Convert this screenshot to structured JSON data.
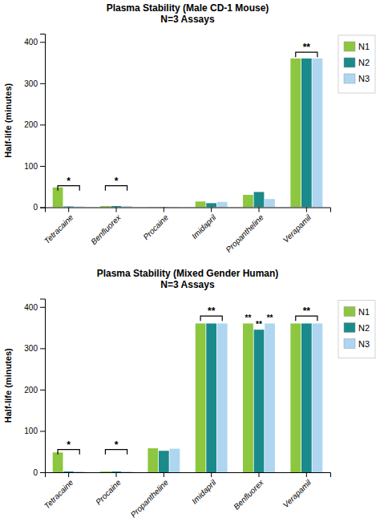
{
  "chart_data": [
    {
      "type": "bar",
      "title": "Plasma Stability (Male CD-1 Mouse)\nN=3 Assays",
      "categories": [
        "Tetracaine",
        "Benfluorex",
        "Procaine",
        "Imidapril",
        "Propantheline",
        "Verapamil"
      ],
      "series": [
        {
          "name": "N1",
          "color": "#8DC63F",
          "values": [
            48,
            3,
            1,
            14,
            30,
            360
          ]
        },
        {
          "name": "N2",
          "color": "#1B8A8A",
          "values": [
            2,
            3,
            1,
            10,
            37,
            360
          ]
        },
        {
          "name": "N3",
          "color": "#AED6F1",
          "values": [
            2,
            3,
            1,
            13,
            20,
            360
          ]
        }
      ],
      "ylabel": "Half-life (minutes)",
      "ylim": [
        0,
        420
      ],
      "yticks": [
        0,
        100,
        200,
        300,
        400
      ],
      "grid": false,
      "legend": "right",
      "annotations": [
        {
          "text": "*",
          "category": "Tetracaine",
          "y": 52
        },
        {
          "text": "*",
          "category": "Benfluorex",
          "y": 52
        },
        {
          "text": "**",
          "category": "Verapamil",
          "y": 375
        }
      ]
    },
    {
      "type": "bar",
      "title": "Plasma Stability (Mixed Gender Human)\nN=3 Assays",
      "categories": [
        "Tetracaine",
        "Procaine",
        "Propantheline",
        "Imidapril",
        "Benfluorex",
        "Verapamil"
      ],
      "series": [
        {
          "name": "N1",
          "color": "#8DC63F",
          "values": [
            48,
            2,
            58,
            360,
            360,
            360
          ]
        },
        {
          "name": "N2",
          "color": "#1B8A8A",
          "values": [
            2,
            2,
            52,
            360,
            345,
            360
          ]
        },
        {
          "name": "N3",
          "color": "#AED6F1",
          "values": [
            2,
            2,
            57,
            360,
            360,
            360
          ]
        }
      ],
      "ylabel": "Half-life (minutes)",
      "ylim": [
        0,
        420
      ],
      "yticks": [
        0,
        100,
        200,
        300,
        400
      ],
      "grid": false,
      "legend": "right",
      "annotations": [
        {
          "text": "*",
          "category": "Tetracaine",
          "y": 55
        },
        {
          "text": "*",
          "category": "Procaine",
          "y": 55
        },
        {
          "text": "**",
          "category": "Imidapril",
          "y": 378
        },
        {
          "text": "**",
          "category": "Benfluorex",
          "series": "N1"
        },
        {
          "text": "**",
          "category": "Benfluorex",
          "series": "N2"
        },
        {
          "text": "**",
          "category": "Benfluorex",
          "series": "N3"
        },
        {
          "text": "**",
          "category": "Verapamil",
          "y": 378
        }
      ]
    }
  ]
}
